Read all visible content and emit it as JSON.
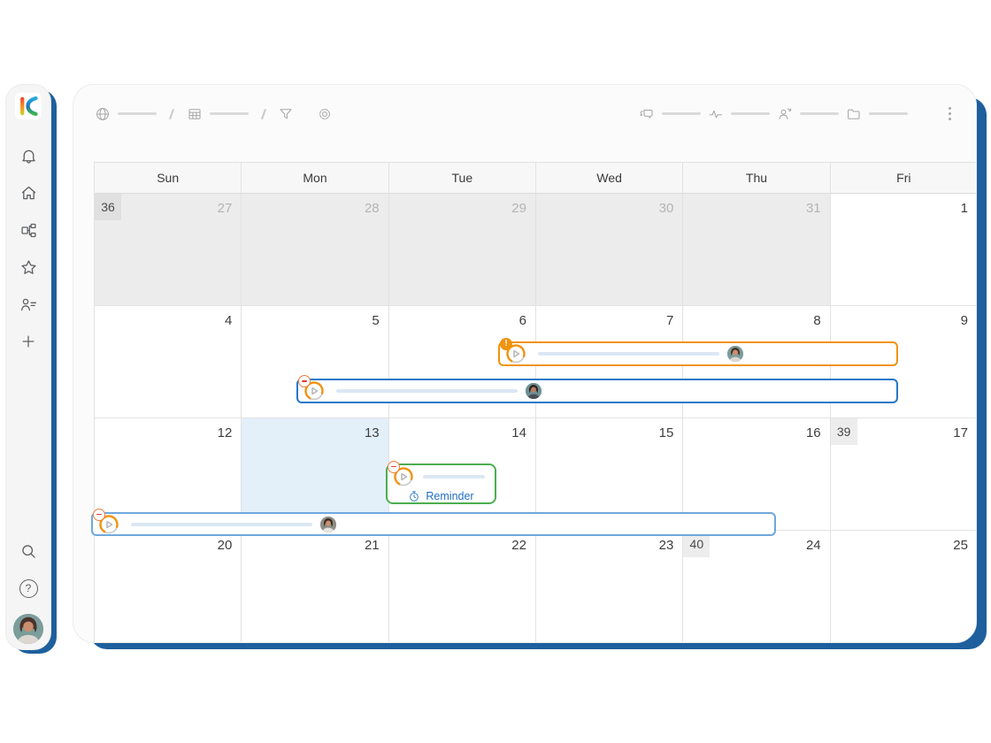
{
  "app": {
    "name": "KanBo"
  },
  "colors": {
    "accent_orange": "#f0930f",
    "accent_blue": "#2478c8",
    "accent_light_blue": "#6fa8dd",
    "accent_green": "#4cae4f",
    "reminder_blue": "#1f6ec2",
    "shadow_blue": "#1e5f9e",
    "muted_cell": "#ececec",
    "today_cell": "#e3eff9"
  },
  "sidebar": {
    "nav_icons": [
      "bell",
      "home",
      "spaces",
      "star",
      "contacts",
      "plus"
    ],
    "footer_icons": [
      "search",
      "help"
    ],
    "help_glyph": "?"
  },
  "toolbar": {
    "left_icons": [
      "globe",
      "table",
      "filter",
      "gear"
    ],
    "right_icons": [
      "chat",
      "activity",
      "user-sync",
      "folder",
      "more"
    ]
  },
  "calendar": {
    "weekdays": [
      "Sun",
      "Mon",
      "Tue",
      "Wed",
      "Thu",
      "Fri"
    ],
    "week_numbers": [
      "36",
      "39",
      "40"
    ],
    "rows": [
      {
        "cells": [
          {
            "date": "27",
            "muted": true,
            "week": "36"
          },
          {
            "date": "28",
            "muted": true
          },
          {
            "date": "29",
            "muted": true
          },
          {
            "date": "30",
            "muted": true
          },
          {
            "date": "31",
            "muted": true
          },
          {
            "date": "1"
          }
        ]
      },
      {
        "cells": [
          {
            "date": "4"
          },
          {
            "date": "5"
          },
          {
            "date": "6"
          },
          {
            "date": "7"
          },
          {
            "date": "8"
          },
          {
            "date": "9"
          }
        ]
      },
      {
        "cells": [
          {
            "date": "12"
          },
          {
            "date": "13",
            "today": true
          },
          {
            "date": "14"
          },
          {
            "date": "15"
          },
          {
            "date": "16"
          },
          {
            "date": "17",
            "week": "39"
          }
        ]
      },
      {
        "cells": [
          {
            "date": "20"
          },
          {
            "date": "21"
          },
          {
            "date": "22"
          },
          {
            "date": "23"
          },
          {
            "date": "24",
            "week": "40"
          },
          {
            "date": "25"
          }
        ]
      }
    ]
  },
  "events": {
    "alert_glyph": "!",
    "reminder_label": "Reminder"
  }
}
